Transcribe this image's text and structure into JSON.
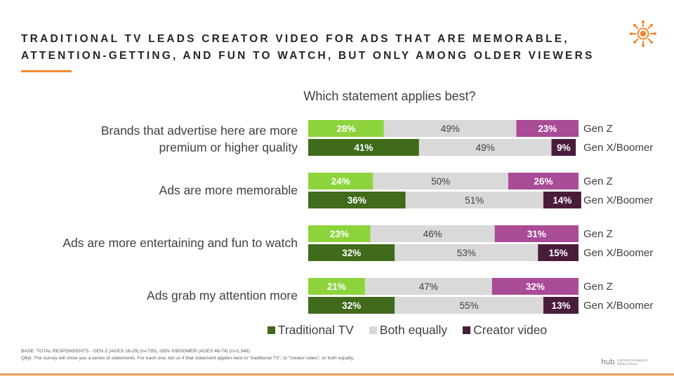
{
  "header": {
    "title_line1": "TRADITIONAL TV LEADS CREATOR VIDEO FOR ADS THAT ARE MEMORABLE,",
    "title_line2": "ATTENTION-GETTING, AND FUN TO WATCH, BUT ONLY AMONG OLDER VIEWERS",
    "accent_color": "#f28a2e",
    "logo_icon": "sun-icon"
  },
  "chart_data": {
    "type": "bar",
    "orientation": "horizontal",
    "stacked": true,
    "percent": true,
    "title": "Which statement applies best?",
    "categories": [
      "Brands that advertise here are more premium or higher quality",
      "Ads are more memorable",
      "Ads are more entertaining and fun to watch",
      "Ads grab my attention more"
    ],
    "groups": [
      "Gen Z",
      "Gen X/Boomer"
    ],
    "series": [
      {
        "name": "Traditional TV",
        "colors": {
          "Gen Z": "#8dd43c",
          "Gen X/Boomer": "#3f6b1b"
        },
        "values": {
          "Gen Z": [
            28,
            24,
            23,
            21
          ],
          "Gen X/Boomer": [
            41,
            36,
            32,
            32
          ]
        }
      },
      {
        "name": "Both equally",
        "colors": {
          "Gen Z": "#d9d9d9",
          "Gen X/Boomer": "#d9d9d9"
        },
        "values": {
          "Gen Z": [
            49,
            50,
            46,
            47
          ],
          "Gen X/Boomer": [
            49,
            51,
            53,
            55
          ]
        }
      },
      {
        "name": "Creator video",
        "colors": {
          "Gen Z": "#a94b96",
          "Gen X/Boomer": "#4a1c3c"
        },
        "values": {
          "Gen Z": [
            23,
            26,
            31,
            32
          ],
          "Gen X/Boomer": [
            9,
            14,
            15,
            13
          ]
        }
      }
    ],
    "legend": [
      "Traditional TV",
      "Both equally",
      "Creator video"
    ],
    "legend_colors": [
      "#3f6b1b",
      "#d9d9d9",
      "#4a1c3c"
    ],
    "legend_position": "bottom",
    "grid": false
  },
  "footnote": {
    "line1": "BASE: TOTAL RESPONDENTS - GEN Z (AGES 16-29) (n=735), GEN X/BOOMER (AGES 46-74) (n=1,348)",
    "line2": "Q8yt. The survey will show you a series of statements.  For each one, tell us if that statement applies best to “traditional TV”, to “creator video”, or both equally."
  },
  "brand": {
    "name": "hub",
    "sub": "ENTERTAINMENT RESEARCH"
  }
}
